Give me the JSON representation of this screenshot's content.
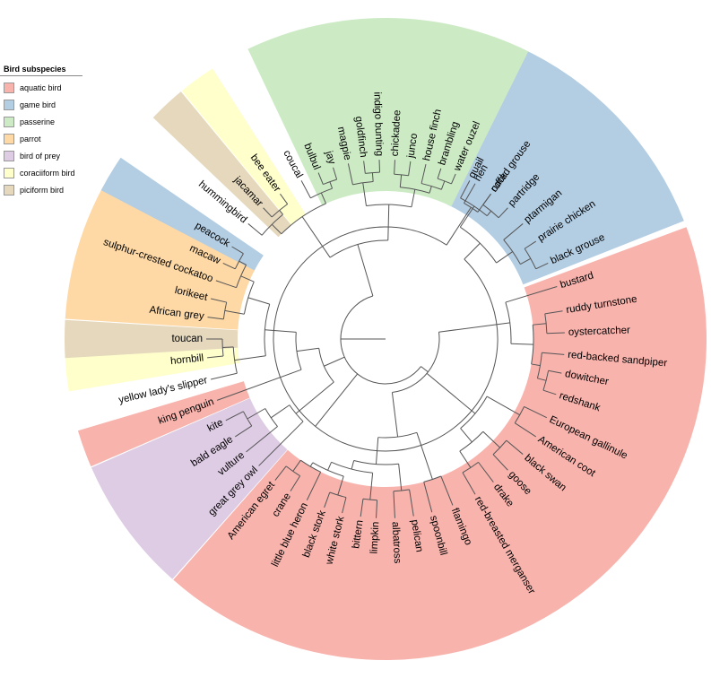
{
  "legend": {
    "title": "Bird subspecies",
    "items": [
      {
        "label": "aquatic bird",
        "color": "#f8b3ad"
      },
      {
        "label": "game bird",
        "color": "#b3cde3"
      },
      {
        "label": "passerine",
        "color": "#ccebc5"
      },
      {
        "label": "parrot",
        "color": "#fed9a6"
      },
      {
        "label": "bird of prey",
        "color": "#decbe4"
      },
      {
        "label": "coraciiform bird",
        "color": "#ffffcc"
      },
      {
        "label": "piciform bird",
        "color": "#e5d8bd"
      }
    ]
  },
  "tree": {
    "line_color": "#555555",
    "leaves": [
      {
        "name": "quail",
        "angle": -62,
        "group": "game bird"
      },
      {
        "name": "ruffed grouse",
        "angle": -54,
        "group": "game bird"
      },
      {
        "name": "partridge",
        "angle": -47,
        "group": "game bird"
      },
      {
        "name": "ptarmigan",
        "angle": -40,
        "group": "game bird"
      },
      {
        "name": "prairie chicken",
        "angle": -33,
        "group": "game bird"
      },
      {
        "name": "black grouse",
        "angle": -25,
        "group": "game bird"
      },
      {
        "name": "bustard",
        "angle": -17,
        "group": "aquatic bird"
      },
      {
        "name": "ruddy turnstone",
        "angle": -9,
        "group": "aquatic bird"
      },
      {
        "name": "oystercatcher",
        "angle": -2,
        "group": "aquatic bird"
      },
      {
        "name": "red-backed sandpiper",
        "angle": 5,
        "group": "aquatic bird"
      },
      {
        "name": "dowitcher",
        "angle": 11,
        "group": "aquatic bird"
      },
      {
        "name": "redshank",
        "angle": 18,
        "group": "aquatic bird"
      },
      {
        "name": "European gallinule",
        "angle": 26,
        "group": "aquatic bird"
      },
      {
        "name": "American coot",
        "angle": 33,
        "group": "aquatic bird"
      },
      {
        "name": "black swan",
        "angle": 40,
        "group": "aquatic bird"
      },
      {
        "name": "goose",
        "angle": 47,
        "group": "aquatic bird"
      },
      {
        "name": "drake",
        "angle": 53,
        "group": "aquatic bird"
      },
      {
        "name": "red-breasted merganser",
        "angle": 60,
        "group": "aquatic bird"
      },
      {
        "name": "flamingo",
        "angle": 68,
        "group": "aquatic bird"
      },
      {
        "name": "spoonbill",
        "angle": 75,
        "group": "aquatic bird"
      },
      {
        "name": "pelican",
        "angle": 81,
        "group": "aquatic bird"
      },
      {
        "name": "albatross",
        "angle": 87,
        "group": "aquatic bird"
      },
      {
        "name": "limpkin",
        "angle": 93,
        "group": "aquatic bird"
      },
      {
        "name": "bittern",
        "angle": 98,
        "group": "aquatic bird"
      },
      {
        "name": "white stork",
        "angle": 104,
        "group": "aquatic bird"
      },
      {
        "name": "black stork",
        "angle": 110,
        "group": "aquatic bird"
      },
      {
        "name": "little blue heron",
        "angle": 116,
        "group": "aquatic bird"
      },
      {
        "name": "crane",
        "angle": 122,
        "group": "aquatic bird"
      },
      {
        "name": "American egret",
        "angle": 128,
        "group": "aquatic bird"
      },
      {
        "name": "great grey owl",
        "angle": 135,
        "group": "bird of prey"
      },
      {
        "name": "vulture",
        "angle": 141,
        "group": "bird of prey"
      },
      {
        "name": "bald eagle",
        "angle": 147,
        "group": "bird of prey"
      },
      {
        "name": "kite",
        "angle": 153,
        "group": "bird of prey"
      },
      {
        "name": "king penguin",
        "angle": 160,
        "group": "aquatic bird"
      },
      {
        "name": "yellow lady's slipper",
        "angle": 167,
        "group": ""
      },
      {
        "name": "hornbill",
        "angle": 174,
        "group": "coraciiform bird"
      },
      {
        "name": "toucan",
        "angle": 180,
        "group": "piciform bird"
      },
      {
        "name": "African grey",
        "angle": 187,
        "group": "parrot"
      },
      {
        "name": "lorikeet",
        "angle": 193,
        "group": "parrot"
      },
      {
        "name": "sulphur-crested cockatoo",
        "angle": 199,
        "group": "parrot"
      },
      {
        "name": "macaw",
        "angle": 205,
        "group": "parrot"
      },
      {
        "name": "peacock",
        "angle": 211,
        "group": "game bird"
      },
      {
        "name": "hummingbird",
        "angle": 220,
        "group": ""
      },
      {
        "name": "jacamar",
        "angle": 227,
        "group": "piciform bird"
      },
      {
        "name": "bee eater",
        "angle": 234,
        "group": "coraciiform bird"
      },
      {
        "name": "coucal",
        "angle": 242,
        "group": ""
      },
      {
        "name": "bulbul",
        "angle": 248,
        "group": "passerine"
      },
      {
        "name": "jay",
        "angle": 253,
        "group": "passerine"
      },
      {
        "name": "magpie",
        "angle": 258,
        "group": "passerine"
      },
      {
        "name": "goldfinch",
        "angle": 263,
        "group": "passerine"
      },
      {
        "name": "indigo bunting",
        "angle": 268,
        "group": "passerine"
      },
      {
        "name": "chickadee",
        "angle": 273,
        "group": "passerine"
      },
      {
        "name": "junco",
        "angle": 278,
        "group": "passerine"
      },
      {
        "name": "house finch",
        "angle": 283,
        "group": "passerine"
      },
      {
        "name": "brambling",
        "angle": 288,
        "group": "passerine"
      },
      {
        "name": "water ouzel",
        "angle": 293,
        "group": "passerine"
      },
      {
        "name": "hen",
        "angle": 300,
        "group": ""
      },
      {
        "name": "cock",
        "angle": 306,
        "group": ""
      }
    ]
  }
}
